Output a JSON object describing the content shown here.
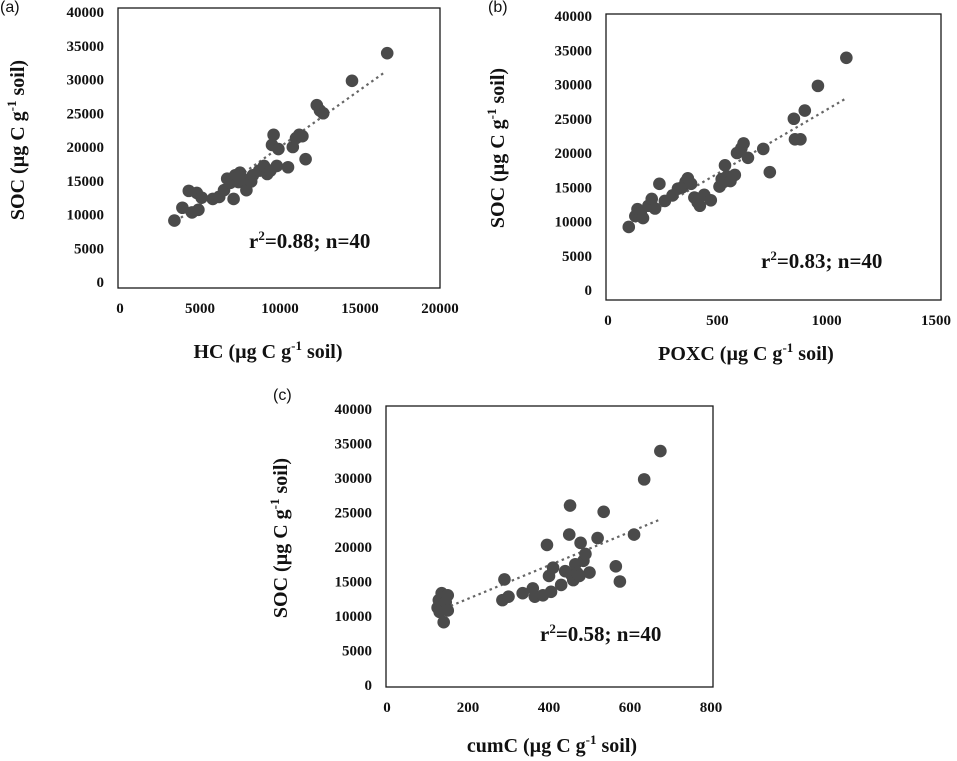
{
  "chart_data": [
    {
      "type": "scatter",
      "panel_label": "(a)",
      "xlabel": "HC (µg C g",
      "xlabel_sup": "-1",
      "xlabel_tail": " soil)",
      "ylabel": "SOC (µg C g",
      "ylabel_sup": "-1",
      "ylabel_tail": " soil)",
      "xlim": [
        0,
        20000
      ],
      "ylim": [
        0,
        40000
      ],
      "xticks": [
        0,
        5000,
        10000,
        15000,
        20000
      ],
      "yticks": [
        0,
        5000,
        10000,
        15000,
        20000,
        25000,
        30000,
        35000,
        40000
      ],
      "annotation_pre": "r",
      "annotation_sup": "2",
      "annotation_post": "=0.88; n=40",
      "trendline": {
        "x": [
          3500,
          16500
        ],
        "y": [
          9000,
          31000
        ]
      },
      "points": [
        {
          "x": 3400,
          "y": 9100
        },
        {
          "x": 3900,
          "y": 11000
        },
        {
          "x": 4300,
          "y": 13500
        },
        {
          "x": 4500,
          "y": 10300
        },
        {
          "x": 4800,
          "y": 13200
        },
        {
          "x": 4900,
          "y": 10700
        },
        {
          "x": 5100,
          "y": 12500
        },
        {
          "x": 5800,
          "y": 12300
        },
        {
          "x": 6200,
          "y": 12600
        },
        {
          "x": 6500,
          "y": 13600
        },
        {
          "x": 6700,
          "y": 15300
        },
        {
          "x": 6900,
          "y": 14700
        },
        {
          "x": 7100,
          "y": 12300
        },
        {
          "x": 7200,
          "y": 15800
        },
        {
          "x": 7400,
          "y": 14800
        },
        {
          "x": 7500,
          "y": 16200
        },
        {
          "x": 7700,
          "y": 15200
        },
        {
          "x": 7900,
          "y": 13600
        },
        {
          "x": 8200,
          "y": 14900
        },
        {
          "x": 8300,
          "y": 15800
        },
        {
          "x": 8700,
          "y": 16500
        },
        {
          "x": 9000,
          "y": 17200
        },
        {
          "x": 9200,
          "y": 16000
        },
        {
          "x": 9400,
          "y": 16500
        },
        {
          "x": 9500,
          "y": 20300
        },
        {
          "x": 9600,
          "y": 21800
        },
        {
          "x": 9800,
          "y": 17200
        },
        {
          "x": 9900,
          "y": 19700
        },
        {
          "x": 10500,
          "y": 17000
        },
        {
          "x": 10800,
          "y": 20000
        },
        {
          "x": 11000,
          "y": 21300
        },
        {
          "x": 11200,
          "y": 21800
        },
        {
          "x": 11400,
          "y": 21600
        },
        {
          "x": 11600,
          "y": 18200
        },
        {
          "x": 12300,
          "y": 26200
        },
        {
          "x": 12500,
          "y": 25400
        },
        {
          "x": 12700,
          "y": 25000
        },
        {
          "x": 14500,
          "y": 29800
        },
        {
          "x": 16700,
          "y": 33900
        },
        {
          "x": 7400,
          "y": 15600
        }
      ]
    },
    {
      "type": "scatter",
      "panel_label": "(b)",
      "xlabel": "POXC (µg C g",
      "xlabel_sup": "-1",
      "xlabel_tail": " soil)",
      "ylabel": "SOC (µg C g",
      "ylabel_sup": "-1",
      "ylabel_tail": " soil)",
      "xlim": [
        0,
        1500
      ],
      "ylim": [
        0,
        40000
      ],
      "xticks": [
        0,
        500,
        1000,
        1500
      ],
      "yticks": [
        0,
        5000,
        10000,
        15000,
        20000,
        25000,
        30000,
        35000,
        40000
      ],
      "annotation_pre": "r",
      "annotation_sup": "2",
      "annotation_post": "=0.83; n=40",
      "trendline": {
        "x": [
          100,
          1090
        ],
        "y": [
          9500,
          28000
        ]
      },
      "points": [
        {
          "x": 95,
          "y": 9200
        },
        {
          "x": 125,
          "y": 10800
        },
        {
          "x": 135,
          "y": 11800
        },
        {
          "x": 150,
          "y": 11200
        },
        {
          "x": 160,
          "y": 10500
        },
        {
          "x": 185,
          "y": 12300
        },
        {
          "x": 200,
          "y": 13300
        },
        {
          "x": 215,
          "y": 11900
        },
        {
          "x": 235,
          "y": 15500
        },
        {
          "x": 260,
          "y": 13000
        },
        {
          "x": 295,
          "y": 13800
        },
        {
          "x": 320,
          "y": 14800
        },
        {
          "x": 340,
          "y": 15000
        },
        {
          "x": 355,
          "y": 15800
        },
        {
          "x": 365,
          "y": 16300
        },
        {
          "x": 380,
          "y": 15500
        },
        {
          "x": 395,
          "y": 13500
        },
        {
          "x": 410,
          "y": 12800
        },
        {
          "x": 420,
          "y": 12300
        },
        {
          "x": 440,
          "y": 13900
        },
        {
          "x": 470,
          "y": 13100
        },
        {
          "x": 510,
          "y": 15100
        },
        {
          "x": 520,
          "y": 16200
        },
        {
          "x": 530,
          "y": 15800
        },
        {
          "x": 535,
          "y": 18200
        },
        {
          "x": 545,
          "y": 16600
        },
        {
          "x": 560,
          "y": 15900
        },
        {
          "x": 580,
          "y": 16800
        },
        {
          "x": 590,
          "y": 20000
        },
        {
          "x": 610,
          "y": 20700
        },
        {
          "x": 620,
          "y": 21400
        },
        {
          "x": 640,
          "y": 19300
        },
        {
          "x": 710,
          "y": 20600
        },
        {
          "x": 740,
          "y": 17200
        },
        {
          "x": 850,
          "y": 25000
        },
        {
          "x": 855,
          "y": 22000
        },
        {
          "x": 880,
          "y": 22000
        },
        {
          "x": 900,
          "y": 26200
        },
        {
          "x": 960,
          "y": 29800
        },
        {
          "x": 1090,
          "y": 33900
        }
      ]
    },
    {
      "type": "scatter",
      "panel_label": "(c)",
      "xlabel": "cumC (µg C g",
      "xlabel_sup": "-1",
      "xlabel_tail": " soil)",
      "ylabel": "SOC (µg C g",
      "ylabel_sup": "-1",
      "ylabel_tail": " soil)",
      "xlim": [
        0,
        800
      ],
      "ylim": [
        0,
        40000
      ],
      "xticks": [
        0,
        200,
        400,
        600,
        800
      ],
      "yticks": [
        0,
        5000,
        10000,
        15000,
        20000,
        25000,
        30000,
        35000,
        40000
      ],
      "annotation_pre": "r",
      "annotation_sup": "2",
      "annotation_post": "=0.58; n=40",
      "trendline": {
        "x": [
          130,
          675
        ],
        "y": [
          10800,
          24000
        ]
      },
      "points": [
        {
          "x": 125,
          "y": 11200
        },
        {
          "x": 128,
          "y": 12300
        },
        {
          "x": 130,
          "y": 10600
        },
        {
          "x": 135,
          "y": 13300
        },
        {
          "x": 138,
          "y": 11500
        },
        {
          "x": 140,
          "y": 9100
        },
        {
          "x": 145,
          "y": 12000
        },
        {
          "x": 150,
          "y": 13000
        },
        {
          "x": 150,
          "y": 10800
        },
        {
          "x": 285,
          "y": 12300
        },
        {
          "x": 290,
          "y": 15300
        },
        {
          "x": 300,
          "y": 12800
        },
        {
          "x": 335,
          "y": 13300
        },
        {
          "x": 360,
          "y": 14000
        },
        {
          "x": 365,
          "y": 12800
        },
        {
          "x": 385,
          "y": 13000
        },
        {
          "x": 395,
          "y": 20300
        },
        {
          "x": 400,
          "y": 15800
        },
        {
          "x": 405,
          "y": 13500
        },
        {
          "x": 410,
          "y": 17000
        },
        {
          "x": 430,
          "y": 14500
        },
        {
          "x": 440,
          "y": 16500
        },
        {
          "x": 450,
          "y": 21800
        },
        {
          "x": 452,
          "y": 26000
        },
        {
          "x": 455,
          "y": 16000
        },
        {
          "x": 460,
          "y": 15200
        },
        {
          "x": 465,
          "y": 17500
        },
        {
          "x": 470,
          "y": 16200
        },
        {
          "x": 475,
          "y": 15800
        },
        {
          "x": 478,
          "y": 20600
        },
        {
          "x": 485,
          "y": 18000
        },
        {
          "x": 490,
          "y": 19000
        },
        {
          "x": 500,
          "y": 16300
        },
        {
          "x": 520,
          "y": 21300
        },
        {
          "x": 535,
          "y": 25100
        },
        {
          "x": 565,
          "y": 17200
        },
        {
          "x": 575,
          "y": 15000
        },
        {
          "x": 610,
          "y": 21800
        },
        {
          "x": 635,
          "y": 29800
        },
        {
          "x": 675,
          "y": 33900
        }
      ]
    }
  ]
}
